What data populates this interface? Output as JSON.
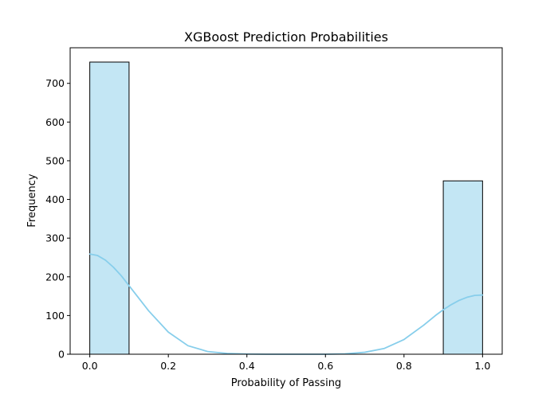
{
  "chart_data": {
    "type": "bar",
    "title": "XGBoost Prediction Probabilities",
    "xlabel": "Probability of Passing",
    "ylabel": "Frequency",
    "xlim": [
      -0.05,
      1.05
    ],
    "ylim": [
      0,
      792
    ],
    "x_ticks": [
      0.0,
      0.2,
      0.4,
      0.6,
      0.8,
      1.0
    ],
    "x_tick_labels": [
      "0.0",
      "0.2",
      "0.4",
      "0.6",
      "0.8",
      "1.0"
    ],
    "y_ticks": [
      0,
      100,
      200,
      300,
      400,
      500,
      600,
      700
    ],
    "y_tick_labels": [
      "0",
      "100",
      "200",
      "300",
      "400",
      "500",
      "600",
      "700"
    ],
    "bins": [
      {
        "x0": 0.0,
        "x1": 0.1,
        "count": 755
      },
      {
        "x0": 0.9,
        "x1": 1.0,
        "count": 448
      }
    ],
    "kde": {
      "x": [
        0.0,
        0.02,
        0.04,
        0.06,
        0.08,
        0.1,
        0.12,
        0.15,
        0.2,
        0.25,
        0.3,
        0.35,
        0.4,
        0.45,
        0.5,
        0.55,
        0.6,
        0.65,
        0.7,
        0.75,
        0.8,
        0.85,
        0.88,
        0.9,
        0.92,
        0.94,
        0.96,
        0.98,
        1.0
      ],
      "y": [
        259,
        255,
        243,
        225,
        203,
        177,
        151,
        112,
        57,
        22,
        7,
        2,
        0.5,
        0,
        0,
        0,
        0,
        1,
        5,
        15,
        38,
        75,
        100,
        115,
        128,
        139,
        147,
        152,
        153
      ]
    },
    "colors": {
      "bar_fill": "#c3e6f4",
      "bar_edge": "#000000",
      "kde_line": "#87ceeb"
    },
    "grid": false
  }
}
